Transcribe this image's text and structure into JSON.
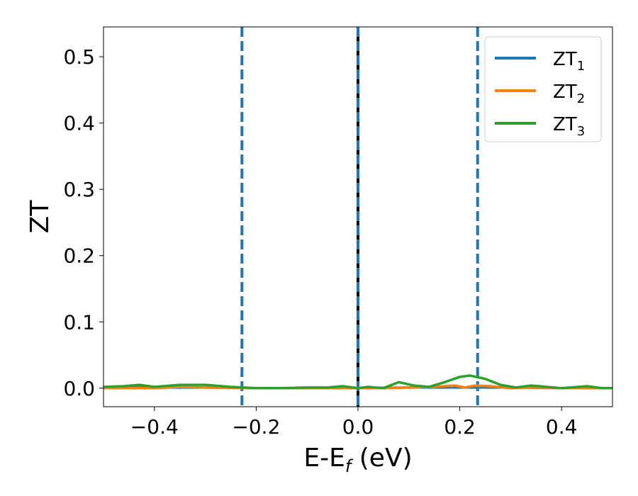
{
  "chart_data": {
    "type": "line",
    "xlabel": {
      "main": "E-E",
      "sub": "f",
      "rest": " (eV)"
    },
    "ylabel": "ZT",
    "xlim": [
      -0.5,
      0.5
    ],
    "ylim": [
      -0.028,
      0.545
    ],
    "xticks": [
      {
        "value": -0.4,
        "label": "−0.4"
      },
      {
        "value": -0.2,
        "label": "−0.2"
      },
      {
        "value": 0.0,
        "label": "0.0"
      },
      {
        "value": 0.2,
        "label": "0.2"
      },
      {
        "value": 0.4,
        "label": "0.4"
      }
    ],
    "yticks": [
      {
        "value": 0.0,
        "label": "0.0"
      },
      {
        "value": 0.1,
        "label": "0.1"
      },
      {
        "value": 0.2,
        "label": "0.2"
      },
      {
        "value": 0.3,
        "label": "0.3"
      },
      {
        "value": 0.4,
        "label": "0.4"
      },
      {
        "value": 0.5,
        "label": "0.5"
      }
    ],
    "grid": false,
    "legend_position": "top-right",
    "vertical_lines": [
      {
        "x": -0.228,
        "style": "dashed",
        "color": "#1f77b4"
      },
      {
        "x": 0.0,
        "style": "solid",
        "color": "#000000"
      },
      {
        "x": 0.0,
        "style": "dashed",
        "color": "#1f77b4"
      },
      {
        "x": 0.235,
        "style": "dashed",
        "color": "#1f77b4"
      }
    ],
    "series": [
      {
        "name": "ZT",
        "sub": "1",
        "color": "#1f77b4",
        "x": [
          -0.5,
          -0.4,
          -0.3,
          -0.2,
          -0.1,
          0.0,
          0.1,
          0.2,
          0.3,
          0.4,
          0.5
        ],
        "y": [
          0.001,
          0.001,
          0.001,
          0.0,
          0.0,
          0.0,
          0.001,
          0.001,
          0.001,
          0.0,
          0.0
        ]
      },
      {
        "name": "ZT",
        "sub": "2",
        "color": "#ff7f0e",
        "x": [
          -0.5,
          -0.45,
          -0.4,
          -0.35,
          -0.3,
          -0.2,
          -0.1,
          0.0,
          0.05,
          0.1,
          0.15,
          0.19,
          0.21,
          0.23,
          0.26,
          0.3,
          0.35,
          0.4,
          0.45,
          0.5
        ],
        "y": [
          0.0,
          0.0,
          0.0,
          0.002,
          0.001,
          0.0,
          0.0,
          0.0,
          0.0,
          0.001,
          0.002,
          0.004,
          0.001,
          0.004,
          0.003,
          0.0,
          0.001,
          0.0,
          0.0,
          0.0
        ]
      },
      {
        "name": "ZT",
        "sub": "3",
        "color": "#2ca02c",
        "x": [
          -0.5,
          -0.46,
          -0.43,
          -0.4,
          -0.35,
          -0.3,
          -0.25,
          -0.2,
          -0.15,
          -0.1,
          -0.06,
          -0.03,
          -0.01,
          0.0,
          0.02,
          0.05,
          0.08,
          0.11,
          0.14,
          0.17,
          0.2,
          0.22,
          0.25,
          0.28,
          0.31,
          0.34,
          0.37,
          0.4,
          0.45,
          0.48,
          0.5
        ],
        "y": [
          0.002,
          0.003,
          0.005,
          0.002,
          0.005,
          0.005,
          0.002,
          0.0,
          0.0,
          0.001,
          0.001,
          0.003,
          0.001,
          0.0,
          0.002,
          0.0,
          0.009,
          0.004,
          0.002,
          0.009,
          0.017,
          0.019,
          0.014,
          0.005,
          0.001,
          0.004,
          0.002,
          0.0,
          0.003,
          0.0,
          0.0
        ]
      }
    ]
  }
}
